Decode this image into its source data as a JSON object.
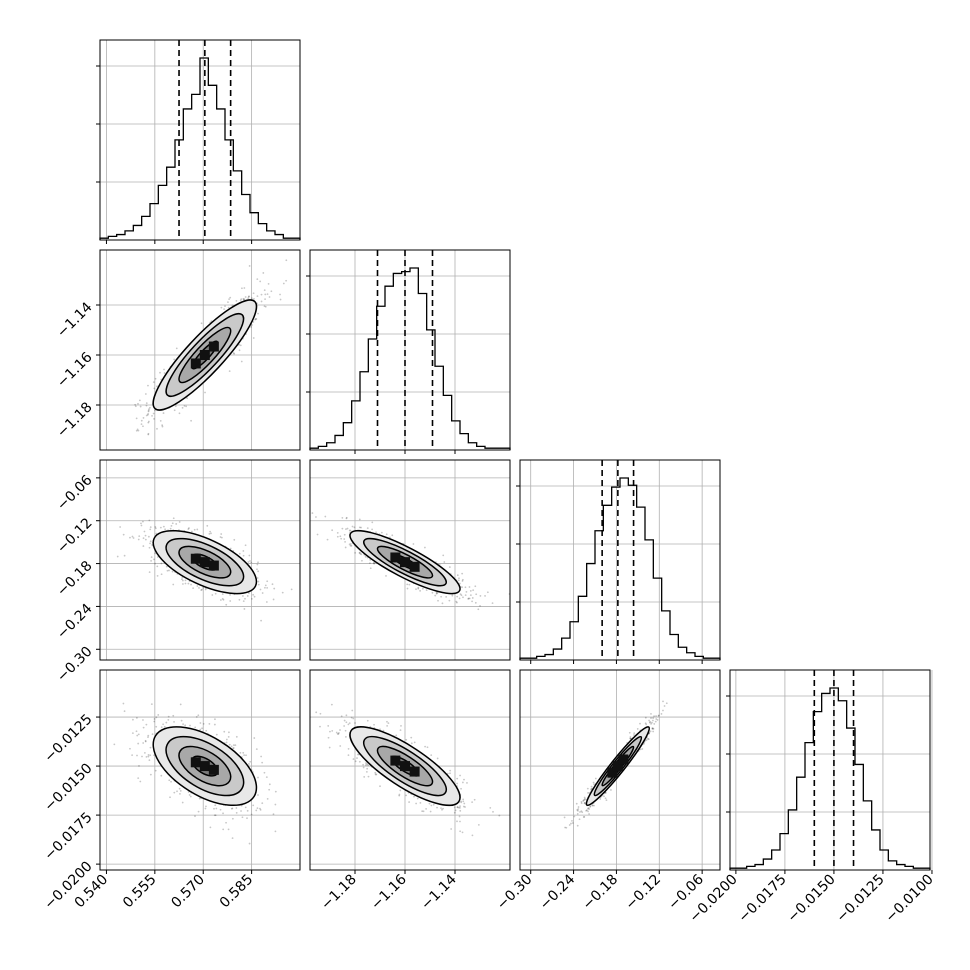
{
  "chart_data": {
    "type": "corner",
    "parameters": [
      {
        "range": [
          0.538,
          0.6
        ],
        "ticks": [
          0.54,
          0.555,
          0.57,
          0.585
        ],
        "tick_labels": [
          "0.540",
          "0.555",
          "0.570",
          "0.585"
        ],
        "quantiles": [
          0.5625,
          0.5705,
          0.5785
        ],
        "hist": [
          1,
          2,
          3,
          5,
          8,
          13,
          20,
          30,
          40,
          55,
          72,
          80,
          100,
          85,
          72,
          55,
          38,
          25,
          15,
          9,
          5,
          3,
          1,
          1
        ]
      },
      {
        "range": [
          -1.198,
          -1.118
        ],
        "ticks": [
          -1.18,
          -1.16,
          -1.14
        ],
        "tick_labels": [
          "−1.18",
          "−1.16",
          "−1.14"
        ],
        "quantiles": [
          -1.171,
          -1.16,
          -1.149
        ],
        "hist": [
          1,
          2,
          4,
          8,
          15,
          27,
          43,
          61,
          79,
          90,
          97,
          98,
          100,
          86,
          66,
          46,
          30,
          16,
          9,
          4,
          2,
          1,
          1,
          1
        ]
      },
      {
        "range": [
          -0.315,
          -0.035
        ],
        "ticks": [
          -0.3,
          -0.24,
          -0.18,
          -0.12,
          -0.06
        ],
        "tick_labels": [
          "−0.30",
          "−0.24",
          "−0.18",
          "−0.12",
          "−0.06"
        ],
        "quantiles": [
          -0.2,
          -0.178,
          -0.156
        ],
        "hist": [
          1,
          1,
          2,
          3,
          6,
          12,
          21,
          35,
          53,
          71,
          85,
          95,
          100,
          96,
          84,
          66,
          45,
          27,
          14,
          7,
          4,
          2,
          1,
          1
        ]
      },
      {
        "range": [
          -0.0203,
          -0.0101
        ],
        "ticks": [
          -0.02,
          -0.0175,
          -0.015,
          -0.0125,
          -0.01
        ],
        "tick_labels": [
          "−0.0200",
          "−0.0175",
          "−0.0150",
          "−0.0125",
          "−0.0100"
        ],
        "quantiles": [
          -0.016,
          -0.015,
          -0.014
        ],
        "hist": [
          1,
          1,
          2,
          3,
          6,
          11,
          20,
          33,
          51,
          70,
          87,
          97,
          100,
          93,
          78,
          58,
          38,
          22,
          11,
          5,
          3,
          2,
          1,
          1
        ]
      }
    ],
    "pairs": [
      {
        "x": 0,
        "y": 1,
        "rho": 0.88
      },
      {
        "x": 0,
        "y": 2,
        "rho": -0.62
      },
      {
        "x": 1,
        "y": 2,
        "rho": -0.85
      },
      {
        "x": 0,
        "y": 3,
        "rho": -0.55
      },
      {
        "x": 1,
        "y": 3,
        "rho": -0.8
      },
      {
        "x": 2,
        "y": 3,
        "rho": 0.96
      }
    ],
    "contour_levels_sigma": [
      0.5,
      1.0,
      1.5,
      2.0
    ],
    "grid": true,
    "xlabel": "",
    "ylabel": "",
    "title": ""
  }
}
